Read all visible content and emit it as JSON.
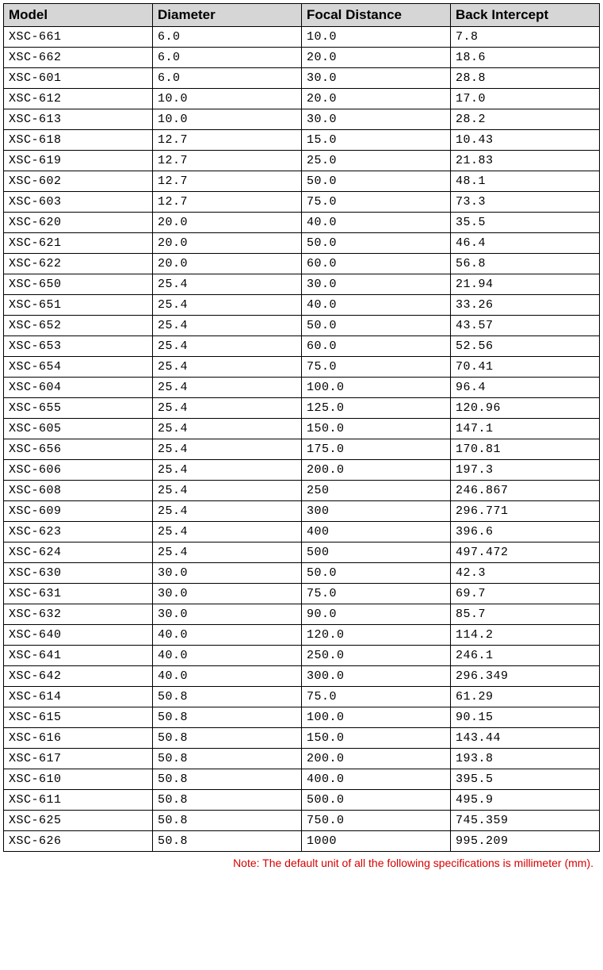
{
  "table": {
    "columns": [
      "Model",
      "Diameter",
      "Focal Distance",
      "Back Intercept"
    ],
    "rows": [
      [
        "XSC-661",
        "6.0",
        "10.0",
        "7.8"
      ],
      [
        "XSC-662",
        "6.0",
        "20.0",
        "18.6"
      ],
      [
        "XSC-601",
        "6.0",
        "30.0",
        "28.8"
      ],
      [
        "XSC-612",
        "10.0",
        "20.0",
        "17.0"
      ],
      [
        "XSC-613",
        "10.0",
        "30.0",
        "28.2"
      ],
      [
        "XSC-618",
        "12.7",
        "15.0",
        "10.43"
      ],
      [
        "XSC-619",
        "12.7",
        "25.0",
        "21.83"
      ],
      [
        "XSC-602",
        "12.7",
        "50.0",
        "48.1"
      ],
      [
        "XSC-603",
        "12.7",
        "75.0",
        "73.3"
      ],
      [
        "XSC-620",
        "20.0",
        "40.0",
        "35.5"
      ],
      [
        "XSC-621",
        "20.0",
        "50.0",
        "46.4"
      ],
      [
        "XSC-622",
        "20.0",
        "60.0",
        "56.8"
      ],
      [
        "XSC-650",
        "25.4",
        "30.0",
        "21.94"
      ],
      [
        "XSC-651",
        "25.4",
        "40.0",
        "33.26"
      ],
      [
        "XSC-652",
        "25.4",
        "50.0",
        "43.57"
      ],
      [
        "XSC-653",
        "25.4",
        "60.0",
        "52.56"
      ],
      [
        "XSC-654",
        "25.4",
        "75.0",
        "70.41"
      ],
      [
        "XSC-604",
        "25.4",
        "100.0",
        "96.4"
      ],
      [
        "XSC-655",
        "25.4",
        "125.0",
        "120.96"
      ],
      [
        "XSC-605",
        "25.4",
        "150.0",
        "147.1"
      ],
      [
        "XSC-656",
        "25.4",
        "175.0",
        "170.81"
      ],
      [
        "XSC-606",
        "25.4",
        "200.0",
        "197.3"
      ],
      [
        "XSC-608",
        "25.4",
        "250",
        "246.867"
      ],
      [
        "XSC-609",
        "25.4",
        "300",
        "296.771"
      ],
      [
        "XSC-623",
        "25.4",
        "400",
        "396.6"
      ],
      [
        "XSC-624",
        "25.4",
        "500",
        "497.472"
      ],
      [
        "XSC-630",
        "30.0",
        "50.0",
        "42.3"
      ],
      [
        "XSC-631",
        "30.0",
        "75.0",
        "69.7"
      ],
      [
        "XSC-632",
        "30.0",
        "90.0",
        "85.7"
      ],
      [
        "XSC-640",
        "40.0",
        "120.0",
        "114.2"
      ],
      [
        "XSC-641",
        "40.0",
        "250.0",
        "246.1"
      ],
      [
        "XSC-642",
        "40.0",
        "300.0",
        "296.349"
      ],
      [
        "XSC-614",
        "50.8",
        "75.0",
        "61.29"
      ],
      [
        "XSC-615",
        "50.8",
        "100.0",
        "90.15"
      ],
      [
        "XSC-616",
        "50.8",
        "150.0",
        "143.44"
      ],
      [
        "XSC-617",
        "50.8",
        "200.0",
        "193.8"
      ],
      [
        "XSC-610",
        "50.8",
        "400.0",
        "395.5"
      ],
      [
        "XSC-611",
        "50.8",
        "500.0",
        "495.9"
      ],
      [
        "XSC-625",
        "50.8",
        "750.0",
        "745.359"
      ],
      [
        "XSC-626",
        "50.8",
        "1000",
        "995.209"
      ]
    ],
    "header_bg": "#d6d6d6",
    "border_color": "#000000",
    "data_font": "Courier New",
    "header_font": "Segoe UI",
    "header_fontsize": 17,
    "data_fontsize": 15
  },
  "note": {
    "text": "Note: The default unit of all the following specifications is millimeter (mm).",
    "color": "#d80000",
    "fontsize": 14
  }
}
